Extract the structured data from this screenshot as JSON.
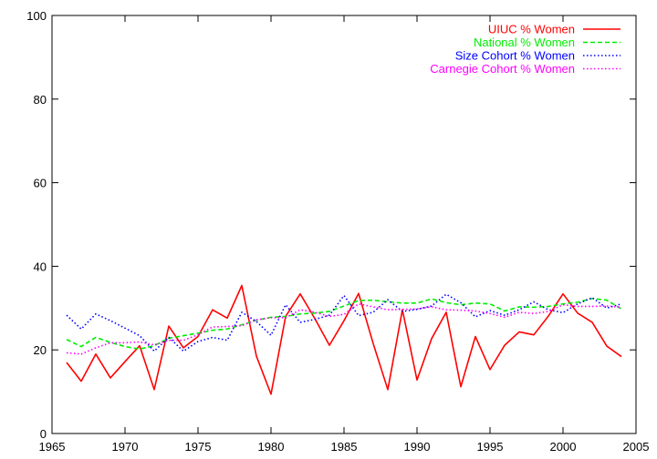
{
  "chart_data": {
    "type": "line",
    "title": "",
    "xlabel": "",
    "ylabel": "",
    "xlim": [
      1965,
      2005
    ],
    "ylim": [
      0,
      100
    ],
    "x_ticks": [
      "1965",
      "1970",
      "1975",
      "1980",
      "1985",
      "1990",
      "1995",
      "2000",
      "2005"
    ],
    "y_ticks": [
      "0",
      "20",
      "40",
      "60",
      "80",
      "100"
    ],
    "grid": false,
    "legend_position": "top-right",
    "x": [
      1966,
      1967,
      1968,
      1969,
      1970,
      1971,
      1972,
      1973,
      1974,
      1975,
      1976,
      1977,
      1978,
      1979,
      1980,
      1981,
      1982,
      1983,
      1984,
      1985,
      1986,
      1987,
      1988,
      1989,
      1990,
      1991,
      1992,
      1993,
      1994,
      1995,
      1996,
      1997,
      1998,
      1999,
      2000,
      2001,
      2002,
      2003,
      2004
    ],
    "series": [
      {
        "name": "UIUC % Women",
        "color": "#ff0000",
        "dash": "solid",
        "values": [
          17,
          12.5,
          19,
          13.3,
          17.2,
          21,
          10.5,
          25.7,
          20.5,
          23.2,
          29.6,
          27.6,
          35.4,
          18.5,
          9.4,
          28,
          33.4,
          27.5,
          21.1,
          27,
          33.5,
          21.5,
          10.5,
          29.6,
          12.8,
          22.7,
          29,
          11.2,
          23.2,
          15.3,
          21.1,
          24.3,
          23.6,
          28.1,
          33.4,
          28.8,
          26.6,
          20.9,
          18.4
        ]
      },
      {
        "name": "National % Women",
        "color": "#00ee00",
        "dash": "dashed",
        "values": [
          22.5,
          20.8,
          23,
          21.8,
          20.8,
          20.2,
          21,
          22.8,
          23.4,
          24,
          24.7,
          25,
          26,
          27.1,
          27.8,
          28,
          28.6,
          28.8,
          29.2,
          30.5,
          31.8,
          31.9,
          31.5,
          31.2,
          31.2,
          32.2,
          31.3,
          30.8,
          31.2,
          31,
          29.3,
          30.3,
          30.2,
          30.4,
          31,
          31.4,
          32.3,
          31.9,
          29.8
        ]
      },
      {
        "name": "Size Cohort % Women",
        "color": "#0000ff",
        "dash": "dotted",
        "values": [
          28.3,
          25,
          28.6,
          27,
          25.2,
          23.4,
          19.7,
          23,
          19.7,
          22,
          23,
          22.3,
          29,
          26.8,
          23.5,
          30.8,
          26.6,
          27.3,
          28.3,
          33,
          28.2,
          29,
          32,
          29.2,
          29.7,
          30.5,
          33.3,
          31.3,
          27.9,
          29.4,
          28.3,
          29.6,
          31.5,
          29.6,
          28.9,
          31,
          32.5,
          30,
          31
        ]
      },
      {
        "name": "Carnegie Cohort % Women",
        "color": "#ff00ff",
        "dash": "dotted",
        "values": [
          19.3,
          19,
          20.5,
          21.7,
          21.7,
          21.9,
          21.2,
          22.3,
          22.3,
          23.6,
          25.5,
          25.6,
          25.8,
          27.2,
          27.7,
          27.7,
          29.6,
          29,
          28,
          28.5,
          31,
          30.3,
          29.6,
          29.7,
          29.8,
          30.3,
          29.6,
          29.5,
          29.3,
          28.7,
          27.8,
          29,
          28.7,
          29.2,
          30.8,
          30.4,
          30.4,
          30.5,
          30.2
        ]
      }
    ]
  }
}
